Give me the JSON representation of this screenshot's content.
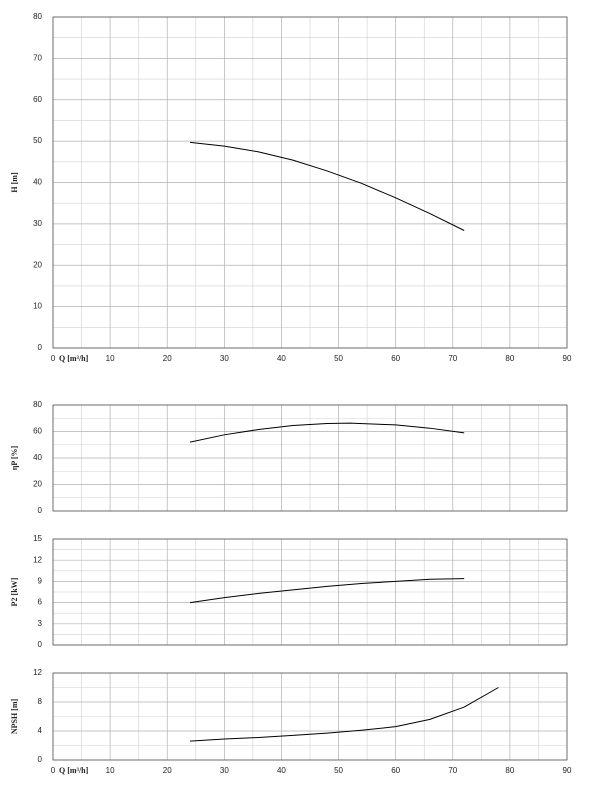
{
  "chart_data": [
    {
      "type": "line",
      "ylabel": "H [m]",
      "xlabel": "Q [m³/h]",
      "xlim": [
        0,
        90
      ],
      "xticks": [
        0,
        10,
        20,
        30,
        40,
        50,
        60,
        70,
        80,
        90
      ],
      "ylim": [
        0,
        80
      ],
      "yticks": [
        0,
        10,
        20,
        30,
        40,
        50,
        60,
        70,
        80
      ],
      "x": [
        24,
        30,
        36,
        42,
        48,
        54,
        60,
        66,
        72
      ],
      "values": [
        49.7,
        48.8,
        47.4,
        45.4,
        42.8,
        39.8,
        36.3,
        32.5,
        28.4
      ],
      "color": "#000000",
      "grid": true
    },
    {
      "type": "line",
      "ylabel": "ηP [%]",
      "xlim": [
        0,
        90
      ],
      "ylim": [
        0,
        80
      ],
      "yticks": [
        0,
        20,
        40,
        60,
        80
      ],
      "x": [
        24,
        30,
        36,
        42,
        48,
        52,
        60,
        66,
        72
      ],
      "values": [
        52,
        57.5,
        61.5,
        64.5,
        66,
        66.3,
        65,
        62.5,
        59
      ],
      "color": "#000000",
      "grid": true
    },
    {
      "type": "line",
      "ylabel": "P2 [kW]",
      "xlim": [
        0,
        90
      ],
      "ylim": [
        0,
        15
      ],
      "yticks": [
        0,
        3,
        6,
        9,
        12,
        15
      ],
      "x": [
        24,
        30,
        36,
        42,
        48,
        54,
        60,
        66,
        72
      ],
      "values": [
        6.0,
        6.7,
        7.3,
        7.8,
        8.3,
        8.7,
        9.0,
        9.3,
        9.4
      ],
      "color": "#000000",
      "grid": true
    },
    {
      "type": "line",
      "ylabel": "NPSH [m]",
      "xlabel": "Q [m³/h]",
      "xlim": [
        0,
        90
      ],
      "xticks": [
        0,
        10,
        20,
        30,
        40,
        50,
        60,
        70,
        80,
        90
      ],
      "ylim": [
        0,
        12
      ],
      "yticks": [
        0,
        4,
        8,
        12
      ],
      "x": [
        24,
        30,
        36,
        42,
        48,
        54,
        60,
        66,
        72,
        78
      ],
      "values": [
        2.6,
        2.9,
        3.1,
        3.4,
        3.7,
        4.1,
        4.6,
        5.6,
        7.3,
        10
      ],
      "color": "#000000",
      "grid": true
    }
  ]
}
